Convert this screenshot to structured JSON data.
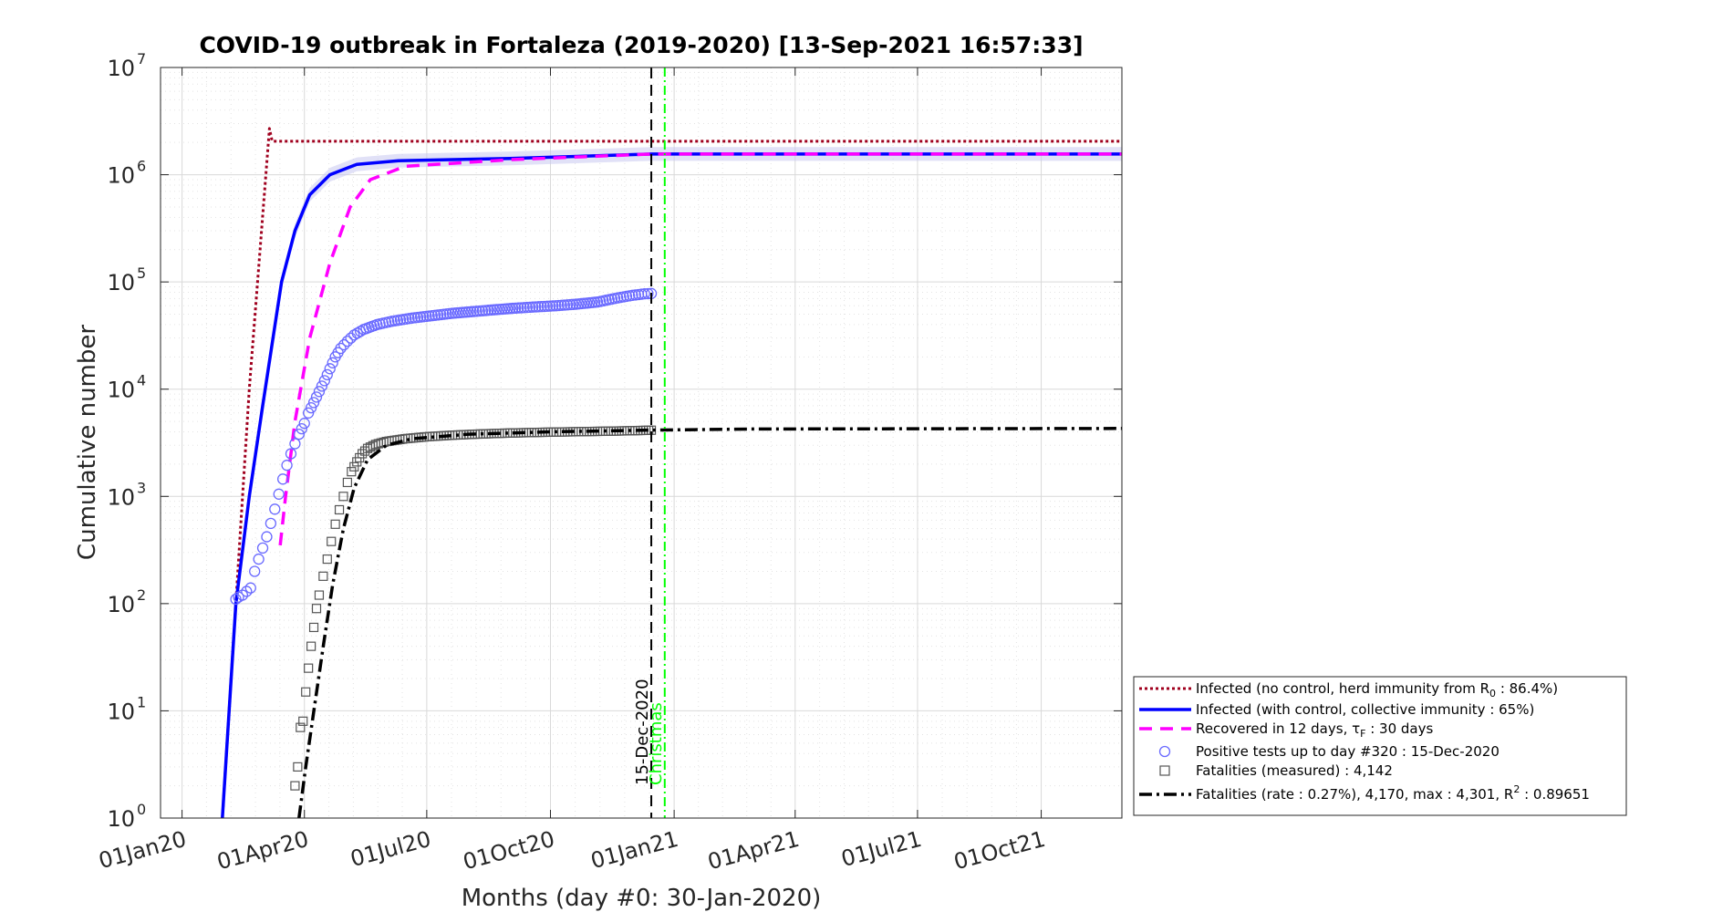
{
  "chart_data": {
    "type": "line",
    "title": "COVID-19 outbreak in Fortaleza (2019-2020) [13-Sep-2021 16:57:33]",
    "xlabel": "Months (day #0: 30-Jan-2020)",
    "ylabel": "Cumulative number",
    "y_scale": "log",
    "ylim": [
      1,
      10000000
    ],
    "xlim": [
      "2019-12-16",
      "2021-11-30"
    ],
    "x_ticks": [
      {
        "date": "2020-01-01",
        "label": "01Jan20"
      },
      {
        "date": "2020-04-01",
        "label": "01Apr20"
      },
      {
        "date": "2020-07-01",
        "label": "01Jul20"
      },
      {
        "date": "2020-10-01",
        "label": "01Oct20"
      },
      {
        "date": "2021-01-01",
        "label": "01Jan21"
      },
      {
        "date": "2021-04-01",
        "label": "01Apr21"
      },
      {
        "date": "2021-07-01",
        "label": "01Jul21"
      },
      {
        "date": "2021-10-01",
        "label": "01Oct21"
      }
    ],
    "y_ticks": [
      {
        "value": 1,
        "base": "10",
        "exp": "0"
      },
      {
        "value": 10,
        "base": "10",
        "exp": "1"
      },
      {
        "value": 100,
        "base": "10",
        "exp": "2"
      },
      {
        "value": 1000,
        "base": "10",
        "exp": "3"
      },
      {
        "value": 10000,
        "base": "10",
        "exp": "4"
      },
      {
        "value": 100000,
        "base": "10",
        "exp": "5"
      },
      {
        "value": 1000000,
        "base": "10",
        "exp": "6"
      },
      {
        "value": 10000000,
        "base": "10",
        "exp": "7"
      }
    ],
    "grid": true,
    "legend_position": "bottom-right outside",
    "vlines": [
      {
        "date": "2020-12-15",
        "label": "15-Dec-2020",
        "color": "#000000",
        "style": "dashed"
      },
      {
        "date": "2020-12-25",
        "label": "Christmas",
        "color": "#00ff00",
        "style": "dashdot"
      }
    ],
    "series": [
      {
        "name": "Infected (no control, herd immunity from R",
        "sub": "0",
        "name_suffix": " : 86.4%)",
        "kind": "line",
        "color": "#a0001e",
        "dash": "3,3",
        "width": 3,
        "points": [
          [
            "2020-01-31",
            1
          ],
          [
            "2020-02-20",
            10000
          ],
          [
            "2020-03-06",
            2700000
          ],
          [
            "2020-03-08",
            2050000
          ],
          [
            "2021-11-30",
            2050000
          ]
        ]
      },
      {
        "name": "Infected (with control, collective immunity : 65%)",
        "kind": "line",
        "color": "#0000ff",
        "dash": "",
        "width": 3.5,
        "band_color": "#c8c8f0",
        "points": [
          [
            "2020-01-31",
            1
          ],
          [
            "2020-02-10",
            100
          ],
          [
            "2020-02-20",
            1000
          ],
          [
            "2020-03-01",
            7000
          ],
          [
            "2020-03-15",
            100000
          ],
          [
            "2020-03-25",
            300000
          ],
          [
            "2020-04-05",
            650000
          ],
          [
            "2020-04-20",
            1000000
          ],
          [
            "2020-05-10",
            1250000
          ],
          [
            "2020-06-10",
            1350000
          ],
          [
            "2020-09-01",
            1420000
          ],
          [
            "2020-12-15",
            1560000
          ],
          [
            "2021-11-30",
            1560000
          ]
        ]
      },
      {
        "name": "Recovered in 12 days, ",
        "tau_label": "τ",
        "tau_sub": "F",
        "name_suffix": " : 30 days",
        "kind": "line",
        "color": "#ff00ff",
        "dash": "14,9",
        "width": 3.5,
        "points": [
          [
            "2020-03-14",
            350
          ],
          [
            "2020-03-18",
            1000
          ],
          [
            "2020-03-25",
            5000
          ],
          [
            "2020-04-05",
            30000
          ],
          [
            "2020-04-20",
            150000
          ],
          [
            "2020-05-05",
            500000
          ],
          [
            "2020-05-20",
            900000
          ],
          [
            "2020-06-15",
            1200000
          ],
          [
            "2020-09-01",
            1380000
          ],
          [
            "2020-12-15",
            1560000
          ],
          [
            "2021-11-30",
            1560000
          ]
        ]
      },
      {
        "name": "Positive tests up to day #320 : 15-Dec-2020",
        "kind": "circles",
        "color": "#6a6aff",
        "points": [
          [
            "2020-02-10",
            110
          ],
          [
            "2020-02-12",
            115
          ],
          [
            "2020-02-15",
            120
          ],
          [
            "2020-02-18",
            130
          ],
          [
            "2020-02-21",
            140
          ],
          [
            "2020-02-24",
            200
          ],
          [
            "2020-02-27",
            260
          ],
          [
            "2020-03-01",
            330
          ],
          [
            "2020-03-04",
            420
          ],
          [
            "2020-03-07",
            560
          ],
          [
            "2020-03-10",
            760
          ],
          [
            "2020-03-13",
            1050
          ],
          [
            "2020-03-16",
            1450
          ],
          [
            "2020-03-19",
            1950
          ],
          [
            "2020-03-22",
            2500
          ],
          [
            "2020-03-25",
            3100
          ],
          [
            "2020-03-28",
            3800
          ],
          [
            "2020-04-01",
            4800
          ],
          [
            "2020-04-04",
            6000
          ],
          [
            "2020-04-08",
            7500
          ],
          [
            "2020-04-12",
            9500
          ],
          [
            "2020-04-16",
            12000
          ],
          [
            "2020-04-20",
            15500
          ],
          [
            "2020-04-24",
            20000
          ],
          [
            "2020-04-28",
            24000
          ],
          [
            "2020-05-03",
            28000
          ],
          [
            "2020-05-08",
            32000
          ],
          [
            "2020-05-15",
            36000
          ],
          [
            "2020-05-25",
            40000
          ],
          [
            "2020-06-05",
            43000
          ],
          [
            "2020-06-20",
            46000
          ],
          [
            "2020-07-05",
            48500
          ],
          [
            "2020-07-20",
            51000
          ],
          [
            "2020-08-05",
            53000
          ],
          [
            "2020-08-20",
            55000
          ],
          [
            "2020-09-05",
            57000
          ],
          [
            "2020-09-20",
            58500
          ],
          [
            "2020-10-05",
            60000
          ],
          [
            "2020-10-20",
            62000
          ],
          [
            "2020-11-05",
            65000
          ],
          [
            "2020-11-20",
            71000
          ],
          [
            "2020-12-01",
            75000
          ],
          [
            "2020-12-10",
            77500
          ],
          [
            "2020-12-15",
            78000
          ]
        ]
      },
      {
        "name": "Fatalities (measured) : 4,142",
        "kind": "squares",
        "color": "#555555",
        "points": [
          [
            "2020-03-25",
            2
          ],
          [
            "2020-03-27",
            3
          ],
          [
            "2020-03-29",
            7
          ],
          [
            "2020-03-31",
            8
          ],
          [
            "2020-04-02",
            15
          ],
          [
            "2020-04-04",
            25
          ],
          [
            "2020-04-06",
            40
          ],
          [
            "2020-04-08",
            60
          ],
          [
            "2020-04-10",
            90
          ],
          [
            "2020-04-12",
            120
          ],
          [
            "2020-04-15",
            180
          ],
          [
            "2020-04-18",
            260
          ],
          [
            "2020-04-21",
            380
          ],
          [
            "2020-04-24",
            550
          ],
          [
            "2020-04-27",
            750
          ],
          [
            "2020-04-30",
            1000
          ],
          [
            "2020-05-03",
            1350
          ],
          [
            "2020-05-06",
            1700
          ],
          [
            "2020-05-10",
            2100
          ],
          [
            "2020-05-14",
            2500
          ],
          [
            "2020-05-18",
            2800
          ],
          [
            "2020-05-24",
            3050
          ],
          [
            "2020-06-01",
            3250
          ],
          [
            "2020-06-15",
            3450
          ],
          [
            "2020-07-01",
            3600
          ],
          [
            "2020-07-20",
            3720
          ],
          [
            "2020-08-10",
            3820
          ],
          [
            "2020-09-01",
            3900
          ],
          [
            "2020-09-25",
            3960
          ],
          [
            "2020-10-20",
            4010
          ],
          [
            "2020-11-15",
            4060
          ],
          [
            "2020-12-01",
            4100
          ],
          [
            "2020-12-15",
            4142
          ]
        ]
      },
      {
        "name": "Fatalities (rate : 0.27%), 4,170, max : 4,301, R",
        "sup": "2",
        "name_suffix": " : 0.89651",
        "kind": "line",
        "color": "#000000",
        "dash": "14,5,3,5",
        "width": 3.5,
        "points": [
          [
            "2020-03-28",
            1
          ],
          [
            "2020-04-02",
            3
          ],
          [
            "2020-04-08",
            10
          ],
          [
            "2020-04-15",
            40
          ],
          [
            "2020-04-22",
            150
          ],
          [
            "2020-04-30",
            500
          ],
          [
            "2020-05-08",
            1200
          ],
          [
            "2020-05-18",
            2200
          ],
          [
            "2020-06-01",
            3000
          ],
          [
            "2020-06-20",
            3450
          ],
          [
            "2020-08-01",
            3800
          ],
          [
            "2020-10-01",
            4000
          ],
          [
            "2020-12-15",
            4150
          ],
          [
            "2021-03-01",
            4250
          ],
          [
            "2021-11-30",
            4301
          ]
        ]
      }
    ]
  }
}
